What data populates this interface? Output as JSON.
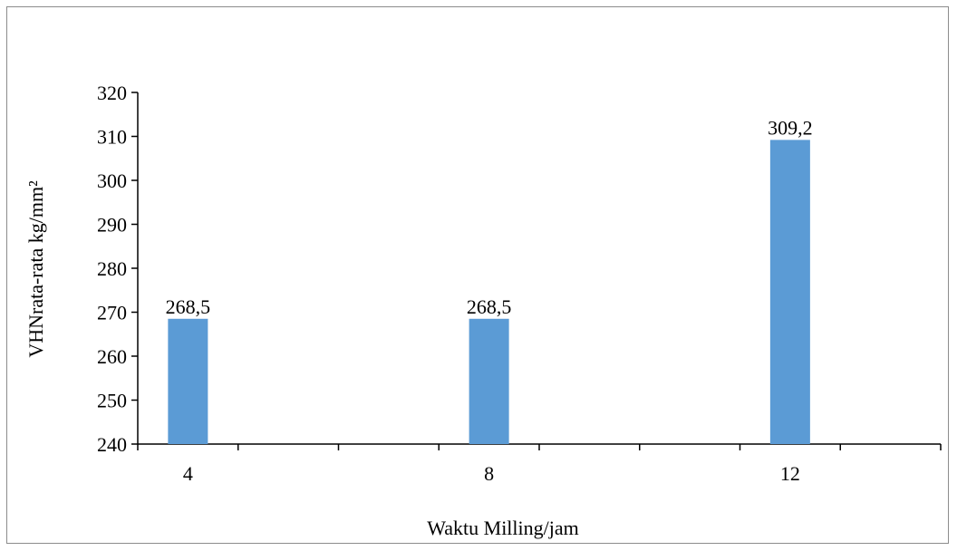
{
  "chart_data": {
    "type": "bar",
    "categories": [
      "4",
      "8",
      "12"
    ],
    "values": [
      268.5,
      268.5,
      309.2
    ],
    "data_labels": [
      "268,5",
      "268,5",
      "309,2"
    ],
    "title": "",
    "xlabel": "Waktu Milling/jam",
    "ylabel": "VHNrata-rata kg/mm²",
    "ylim": [
      240,
      320
    ],
    "yticks": [
      240,
      250,
      260,
      270,
      280,
      290,
      300,
      310,
      320
    ],
    "grid": false,
    "legend": "none",
    "bar_color": "#5b9bd5",
    "axis_color": "#000000"
  }
}
